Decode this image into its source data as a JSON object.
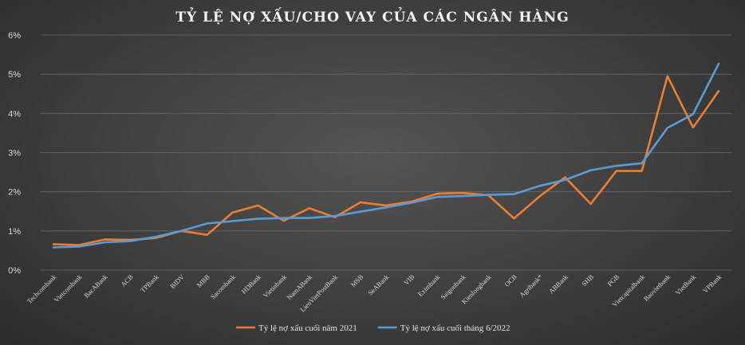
{
  "chart_data": {
    "type": "line",
    "title": "TỶ LỆ NỢ XẤU/CHO VAY CỦA CÁC NGÂN HÀNG",
    "xlabel": "",
    "ylabel": "",
    "ylim": [
      0,
      6
    ],
    "y_ticks": [
      "0%",
      "1%",
      "2%",
      "3%",
      "4%",
      "5%",
      "6%"
    ],
    "grid": true,
    "legend_position": "bottom",
    "categories": [
      "Techcombank",
      "Vietcombank",
      "BacABank",
      "ACB",
      "TPBank",
      "BIDV",
      "MBB",
      "Sacombank",
      "HDBank",
      "Vietinbank",
      "NamABank",
      "LienVietPostBank",
      "MSB",
      "SeABank",
      "VIB",
      "Eximbank",
      "Saigonbank",
      "Kienlongbank",
      "OCB",
      "Agribank*",
      "ABBank",
      "SHB",
      "PGB",
      "Vietcapitalbank",
      "Baovietbank",
      "VietBank",
      "VPBank"
    ],
    "series": [
      {
        "name": "Tỷ lệ nợ xấu cuối năm 2021",
        "color": "#ED7D31",
        "values": [
          0.66,
          0.64,
          0.78,
          0.77,
          0.82,
          1.0,
          0.9,
          1.47,
          1.65,
          1.26,
          1.58,
          1.35,
          1.73,
          1.65,
          1.75,
          1.95,
          1.97,
          1.91,
          1.32,
          1.88,
          2.37,
          1.69,
          2.53,
          2.53,
          4.95,
          3.64,
          4.57
        ]
      },
      {
        "name": "Tỷ lệ nợ xấu cuối tháng 6/2022",
        "color": "#5B9BD5",
        "values": [
          0.58,
          0.6,
          0.71,
          0.74,
          0.85,
          1.0,
          1.19,
          1.25,
          1.31,
          1.33,
          1.33,
          1.38,
          1.49,
          1.6,
          1.72,
          1.87,
          1.89,
          1.92,
          1.94,
          2.15,
          2.3,
          2.55,
          2.66,
          2.73,
          3.63,
          3.98,
          5.27
        ]
      }
    ]
  }
}
